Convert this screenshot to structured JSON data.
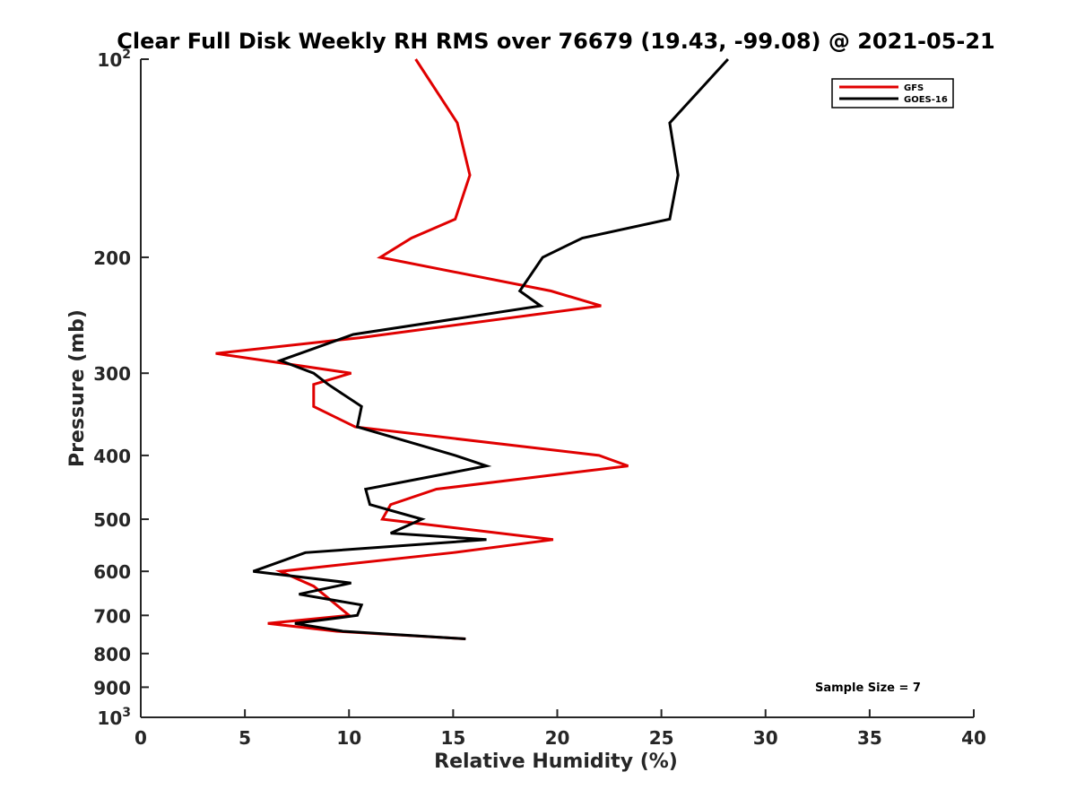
{
  "chart_data": {
    "type": "line",
    "title": "Clear Full Disk Weekly RH RMS over 76679 (19.43, -99.08) @ 2021-05-21",
    "xlabel": "Relative Humidity (%)",
    "ylabel": "Pressure (mb)",
    "xlim": [
      0,
      40
    ],
    "ylim": [
      100,
      1000
    ],
    "yscale": "log",
    "y_reversed": true,
    "grid": false,
    "legend_position": "top-right",
    "x_ticks": [
      0,
      5,
      10,
      15,
      20,
      25,
      30,
      35,
      40
    ],
    "y_ticks": [
      {
        "value": 100,
        "label_base": "10",
        "label_exp": "2"
      },
      {
        "value": 200,
        "label": "200"
      },
      {
        "value": 300,
        "label": "300"
      },
      {
        "value": 400,
        "label": "400"
      },
      {
        "value": 500,
        "label": "500"
      },
      {
        "value": 600,
        "label": "600"
      },
      {
        "value": 700,
        "label": "700"
      },
      {
        "value": 800,
        "label": "800"
      },
      {
        "value": 900,
        "label": "900"
      },
      {
        "value": 1000,
        "label_base": "10",
        "label_exp": "3"
      }
    ],
    "series": [
      {
        "name": "GFS",
        "color": "#e00000",
        "points": [
          [
            13.2,
            100
          ],
          [
            15.2,
            125
          ],
          [
            15.8,
            150
          ],
          [
            15.1,
            175
          ],
          [
            13.0,
            187
          ],
          [
            11.5,
            200
          ],
          [
            19.7,
            225
          ],
          [
            22.1,
            237
          ],
          [
            10.5,
            265
          ],
          [
            3.6,
            280
          ],
          [
            10.1,
            300
          ],
          [
            8.3,
            312
          ],
          [
            8.3,
            337
          ],
          [
            10.3,
            362
          ],
          [
            22.0,
            400
          ],
          [
            23.4,
            415
          ],
          [
            14.2,
            450
          ],
          [
            12.0,
            475
          ],
          [
            11.6,
            500
          ],
          [
            19.8,
            537
          ],
          [
            15.0,
            562
          ],
          [
            6.7,
            600
          ],
          [
            8.3,
            632
          ],
          [
            9.4,
            675
          ],
          [
            10.0,
            700
          ],
          [
            6.1,
            720
          ],
          [
            9.4,
            740
          ],
          [
            15.6,
            760
          ]
        ]
      },
      {
        "name": "GOES-16",
        "color": "#000000",
        "points": [
          [
            28.2,
            100
          ],
          [
            25.4,
            125
          ],
          [
            25.8,
            150
          ],
          [
            25.4,
            175
          ],
          [
            21.2,
            187
          ],
          [
            19.3,
            200
          ],
          [
            18.2,
            225
          ],
          [
            19.2,
            237
          ],
          [
            10.2,
            262
          ],
          [
            6.7,
            287
          ],
          [
            8.3,
            300
          ],
          [
            9.0,
            312
          ],
          [
            10.6,
            337
          ],
          [
            10.4,
            362
          ],
          [
            15.1,
            400
          ],
          [
            16.6,
            415
          ],
          [
            10.8,
            450
          ],
          [
            11.0,
            475
          ],
          [
            13.5,
            500
          ],
          [
            12.0,
            525
          ],
          [
            16.6,
            537
          ],
          [
            7.9,
            562
          ],
          [
            5.4,
            600
          ],
          [
            10.1,
            625
          ],
          [
            7.6,
            650
          ],
          [
            10.6,
            675
          ],
          [
            10.4,
            700
          ],
          [
            7.4,
            720
          ],
          [
            9.7,
            740
          ],
          [
            15.6,
            760
          ]
        ]
      }
    ],
    "annotation": "Sample Size = 7"
  }
}
